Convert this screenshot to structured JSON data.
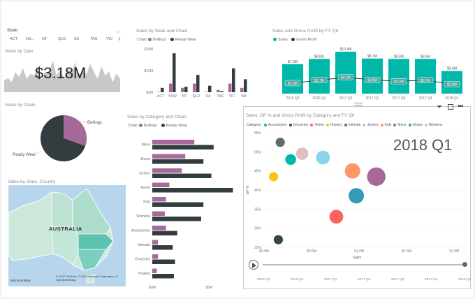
{
  "slicer": {
    "title": "State",
    "items": [
      "ACT",
      "NS...",
      "NT",
      "QLD",
      "SA",
      "TAS",
      "VIC"
    ]
  },
  "sales_by_date": {
    "title": "Sales by Date",
    "kpi": "$3.18M",
    "area_values": [
      0.35,
      0.42,
      0.3,
      0.6,
      0.45,
      0.72,
      0.4,
      0.55,
      0.5,
      0.8,
      0.38,
      0.62,
      0.58,
      0.95,
      0.5,
      0.66,
      0.42,
      0.75,
      0.55,
      0.9,
      0.48,
      0.7,
      0.52,
      0.85,
      0.6,
      0.4,
      0.78,
      0.5,
      0.62,
      0.3,
      0.55,
      0.4
    ]
  },
  "sales_by_chain": {
    "title": "Sales by Chain",
    "labels": [
      "Bellings",
      "Ready Wear"
    ]
  },
  "sales_by_state_country": {
    "title": "Sales by State, Country",
    "map_label": "AUSTRALIA",
    "bing": "Microsoft Bing",
    "copyright": "© 2022 TomTom, © 2022 Microsoft Corporation, © OpenStreetMap"
  },
  "sales_by_state_chain": {
    "title": "Sales by State and Chain",
    "legend_title": "Chain",
    "colors": {
      "Bellings": "#a66999",
      "Ready Wear": "#333d40"
    },
    "chart_data": {
      "type": "bar",
      "categories": [
        "ACT",
        "NSW",
        "NT",
        "QLD",
        "SA",
        "TAS",
        "VIC",
        "WA"
      ],
      "series": [
        {
          "name": "Bellings",
          "values": [
            0.2,
            4.0,
            2.0,
            4.0,
            0.2,
            1.0,
            4.0,
            2.0
          ]
        },
        {
          "name": "Ready Wear",
          "values": [
            2.0,
            18.0,
            2.5,
            8.0,
            3.0,
            0.5,
            11.0,
            6.0
          ]
        }
      ],
      "yticks": [
        "$0M",
        "$10M",
        "$20M"
      ],
      "ylim": [
        0,
        20
      ]
    }
  },
  "sales_gp_fy": {
    "title": "Sales and Gross Profit by FY Qtr",
    "legend": [
      "Sales",
      "Gross Profit"
    ],
    "colors": {
      "Sales": "#00b8aa",
      "Gross Profit": "#333d40"
    },
    "chart_data": {
      "type": "bar",
      "categories": [
        "2016 Q3",
        "2016 Q4",
        "2017 Q1",
        "2017 Q2",
        "2017 Q3",
        "2017 Q4",
        "2018 Q1"
      ],
      "sales": [
        7.3,
        8.6,
        10.4,
        8.7,
        8.6,
        8.6,
        5.6
      ],
      "sales_labels": [
        "$7.3M",
        "$8.6M",
        "$10.4M",
        "$8.7M",
        "$8.6M",
        "$8.6M",
        "$5.6M"
      ],
      "gross_profit": [
        2.9,
        3.7,
        4.5,
        3.8,
        3.4,
        3.7,
        2.6
      ],
      "gp_labels": [
        "$2.9M",
        "$3.7M",
        "$4.5M",
        "$3.8M",
        "$3.4M",
        "$3.7M",
        "$2.6M"
      ],
      "ylim": [
        0,
        10.4
      ]
    }
  },
  "sales_by_category_chain": {
    "title": "Sales by Category and Chain",
    "legend_title": "Chain",
    "chart_data": {
      "type": "bar",
      "categories": [
        "Mens",
        "Shoes",
        "Juniors",
        "Home",
        "Kids",
        "Womens",
        "Accessories",
        "Intimate",
        "Groceries",
        "Hosiery"
      ],
      "series": [
        {
          "name": "Bellings",
          "values": [
            3.7,
            2.9,
            2.6,
            1.5,
            1.2,
            1.1,
            1.2,
            0.5,
            0.5,
            0.4
          ]
        },
        {
          "name": "Ready Wear",
          "values": [
            5.4,
            4.5,
            5.2,
            7.1,
            4.5,
            4.3,
            2.2,
            1.8,
            2.0,
            1.9
          ]
        }
      ],
      "xticks": [
        "$0M",
        "$5M"
      ],
      "xlim": [
        0,
        7.5
      ]
    }
  },
  "scatter": {
    "title": "Sales, GP % and Gross Profit by Category and FY Qtr",
    "legend_title": "Category",
    "play_label": "2018 Q1",
    "xlabel": "Sales",
    "ylabel": "GP %",
    "timeline": [
      "2016 Q3",
      "2016 Q4",
      "2017 Q1",
      "2017 Q2",
      "2017 Q3",
      "2017 Q4",
      "2018 Q1"
    ],
    "chart_data": {
      "type": "scatter",
      "categories": [
        {
          "name": "Accessories",
          "color": "#00b8aa"
        },
        {
          "name": "Groceries",
          "color": "#374649"
        },
        {
          "name": "Home",
          "color": "#fd625e"
        },
        {
          "name": "Hosiery",
          "color": "#f2c80f"
        },
        {
          "name": "Intimate",
          "color": "#5f6b6d"
        },
        {
          "name": "Juniors",
          "color": "#8ad4eb"
        },
        {
          "name": "Kids",
          "color": "#fe9666"
        },
        {
          "name": "Mens",
          "color": "#a66999"
        },
        {
          "name": "Shoes",
          "color": "#3599b8"
        },
        {
          "name": "Womens",
          "color": "#dfbfbf"
        }
      ],
      "points": [
        {
          "category": "Intimate",
          "x": 0.17,
          "y": 52.5,
          "size": 3
        },
        {
          "category": "Womens",
          "x": 0.4,
          "y": 49.5,
          "size": 4
        },
        {
          "category": "Accessories",
          "x": 0.28,
          "y": 48.0,
          "size": 3.5
        },
        {
          "category": "Juniors",
          "x": 0.62,
          "y": 48.5,
          "size": 4.5
        },
        {
          "category": "Hosiery",
          "x": 0.1,
          "y": 43.5,
          "size": 3
        },
        {
          "category": "Kids",
          "x": 0.93,
          "y": 45.0,
          "size": 5
        },
        {
          "category": "Mens",
          "x": 1.18,
          "y": 43.5,
          "size": 6
        },
        {
          "category": "Shoes",
          "x": 0.97,
          "y": 38.5,
          "size": 5
        },
        {
          "category": "Home",
          "x": 0.76,
          "y": 33.0,
          "size": 4.5
        },
        {
          "category": "Groceries",
          "x": 0.15,
          "y": 27.0,
          "size": 3
        }
      ],
      "xticks": [
        "$0.0M",
        "$0.5M",
        "$1.0M",
        "$1.5M",
        "$2.0M"
      ],
      "xlim": [
        0,
        2.1
      ],
      "yticks": [
        "25%",
        "30%",
        "35%",
        "40%",
        "45%",
        "50%",
        "55%"
      ],
      "ylim": [
        25,
        55
      ]
    }
  }
}
